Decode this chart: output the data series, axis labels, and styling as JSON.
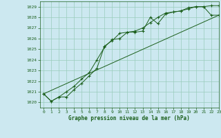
{
  "xlabel": "Graphe pression niveau de la mer (hPa)",
  "background_color": "#cce8f0",
  "grid_color": "#99ccbb",
  "line_color": "#1a5e1a",
  "xlim": [
    -0.5,
    23
  ],
  "ylim": [
    1019.5,
    1029.5
  ],
  "xticks": [
    0,
    1,
    2,
    3,
    4,
    5,
    6,
    7,
    8,
    9,
    10,
    11,
    12,
    13,
    14,
    15,
    16,
    17,
    18,
    19,
    20,
    21,
    22,
    23
  ],
  "yticks": [
    1020,
    1021,
    1022,
    1023,
    1024,
    1025,
    1026,
    1027,
    1028,
    1029
  ],
  "series1_x": [
    0,
    1,
    2,
    3,
    4,
    5,
    6,
    7,
    8,
    9,
    10,
    11,
    12,
    13,
    14,
    15,
    16,
    17,
    18,
    19,
    20,
    21,
    22,
    23
  ],
  "series1_y": [
    1020.8,
    1020.1,
    1020.5,
    1020.5,
    1021.2,
    1021.8,
    1022.5,
    1023.2,
    1025.3,
    1025.8,
    1026.5,
    1026.6,
    1026.6,
    1026.7,
    1028.0,
    1027.4,
    1028.3,
    1028.5,
    1028.6,
    1028.8,
    1029.0,
    1029.0,
    1029.1,
    1029.1
  ],
  "series2_x": [
    0,
    1,
    2,
    3,
    4,
    5,
    6,
    7,
    8,
    9,
    10,
    11,
    12,
    13,
    14,
    15,
    16,
    17,
    18,
    19,
    20,
    21,
    22,
    23
  ],
  "series2_y": [
    1020.8,
    1020.1,
    1020.5,
    1021.0,
    1021.5,
    1022.2,
    1022.8,
    1024.0,
    1025.2,
    1025.9,
    1026.0,
    1026.6,
    1026.7,
    1027.0,
    1027.5,
    1028.0,
    1028.4,
    1028.5,
    1028.6,
    1028.9,
    1029.0,
    1029.0,
    1028.2,
    1028.2
  ],
  "series3_x": [
    0,
    23
  ],
  "series3_y": [
    1020.8,
    1028.2
  ]
}
